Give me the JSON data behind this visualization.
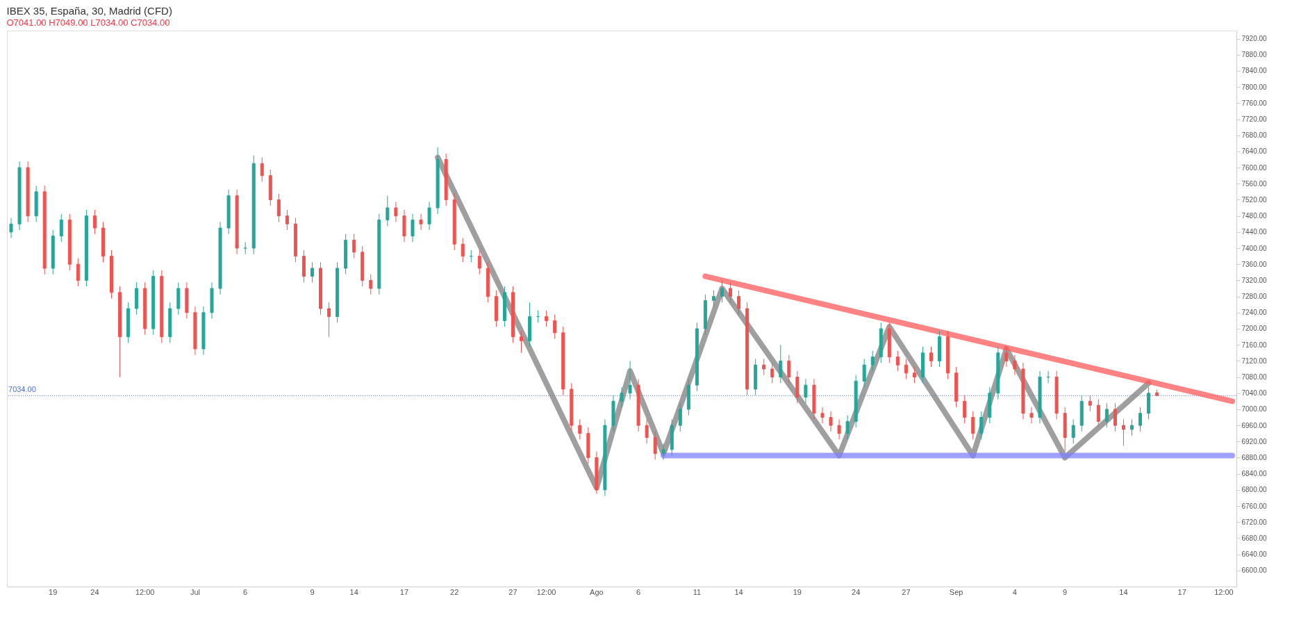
{
  "chart_data": {
    "type": "candlestick",
    "title": "IBEX 35, España, 30, Madrid (CFD)",
    "subtitle": "O7041.00 H7049.00 L7034.00 C7034.00",
    "categories": [
      null,
      null,
      null,
      null,
      null,
      "19",
      null,
      null,
      null,
      null,
      "24",
      null,
      null,
      null,
      null,
      null,
      "12:00",
      null,
      null,
      null,
      null,
      null,
      "Jul",
      null,
      null,
      null,
      null,
      null,
      "6",
      null,
      null,
      null,
      null,
      null,
      null,
      null,
      "9",
      null,
      null,
      null,
      null,
      "14",
      null,
      null,
      null,
      null,
      null,
      "17",
      null,
      null,
      null,
      null,
      null,
      "22",
      null,
      null,
      null,
      null,
      null,
      null,
      "27",
      null,
      null,
      null,
      "12:00",
      null,
      null,
      null,
      null,
      null,
      "Ago",
      null,
      null,
      null,
      null,
      "6",
      null,
      null,
      null,
      null,
      null,
      null,
      "11",
      null,
      null,
      null,
      null,
      "14",
      null,
      null,
      null,
      null,
      null,
      null,
      "19",
      null,
      null,
      null,
      null,
      null,
      null,
      "24",
      null,
      null,
      null,
      null,
      null,
      "27",
      null,
      null,
      null,
      null,
      null,
      "Sep",
      null,
      null,
      null,
      null,
      null,
      null,
      "4",
      null,
      null,
      null,
      null,
      null,
      "9",
      null,
      null,
      null,
      null,
      null,
      null,
      "14",
      null,
      null,
      null,
      null,
      null,
      null,
      "17",
      null,
      null,
      null,
      null,
      "12:00",
      null
    ],
    "ohlc": [
      [
        7440,
        7475,
        7425,
        7460
      ],
      [
        7460,
        7615,
        7445,
        7600
      ],
      [
        7600,
        7615,
        7465,
        7480
      ],
      [
        7480,
        7555,
        7465,
        7540
      ],
      [
        7540,
        7555,
        7335,
        7350
      ],
      [
        7350,
        7445,
        7335,
        7430
      ],
      [
        7430,
        7485,
        7415,
        7470
      ],
      [
        7470,
        7485,
        7345,
        7360
      ],
      [
        7360,
        7375,
        7305,
        7320
      ],
      [
        7320,
        7495,
        7305,
        7480
      ],
      [
        7480,
        7495,
        7435,
        7450
      ],
      [
        7450,
        7465,
        7365,
        7380
      ],
      [
        7380,
        7395,
        7275,
        7290
      ],
      [
        7290,
        7305,
        7080,
        7180
      ],
      [
        7180,
        7265,
        7165,
        7250
      ],
      [
        7250,
        7315,
        7235,
        7300
      ],
      [
        7300,
        7315,
        7185,
        7200
      ],
      [
        7200,
        7345,
        7185,
        7330
      ],
      [
        7330,
        7345,
        7165,
        7180
      ],
      [
        7180,
        7265,
        7165,
        7250
      ],
      [
        7250,
        7315,
        7235,
        7300
      ],
      [
        7300,
        7315,
        7225,
        7240
      ],
      [
        7240,
        7255,
        7135,
        7150
      ],
      [
        7150,
        7255,
        7135,
        7240
      ],
      [
        7240,
        7315,
        7225,
        7300
      ],
      [
        7300,
        7465,
        7285,
        7450
      ],
      [
        7450,
        7545,
        7435,
        7530
      ],
      [
        7530,
        7545,
        7385,
        7400
      ],
      [
        7400,
        7415,
        7385,
        7400
      ],
      [
        7400,
        7630,
        7385,
        7610
      ],
      [
        7610,
        7625,
        7565,
        7580
      ],
      [
        7580,
        7595,
        7505,
        7520
      ],
      [
        7520,
        7535,
        7465,
        7480
      ],
      [
        7480,
        7495,
        7445,
        7460
      ],
      [
        7460,
        7475,
        7365,
        7380
      ],
      [
        7380,
        7395,
        7315,
        7330
      ],
      [
        7330,
        7365,
        7315,
        7350
      ],
      [
        7350,
        7365,
        7235,
        7250
      ],
      [
        7250,
        7265,
        7180,
        7230
      ],
      [
        7230,
        7365,
        7215,
        7350
      ],
      [
        7350,
        7435,
        7335,
        7420
      ],
      [
        7420,
        7435,
        7375,
        7390
      ],
      [
        7390,
        7405,
        7305,
        7320
      ],
      [
        7320,
        7335,
        7285,
        7300
      ],
      [
        7300,
        7485,
        7285,
        7470
      ],
      [
        7470,
        7530,
        7455,
        7500
      ],
      [
        7500,
        7515,
        7465,
        7480
      ],
      [
        7480,
        7495,
        7415,
        7430
      ],
      [
        7430,
        7485,
        7415,
        7470
      ],
      [
        7470,
        7485,
        7445,
        7460
      ],
      [
        7460,
        7515,
        7445,
        7500
      ],
      [
        7500,
        7650,
        7485,
        7620
      ],
      [
        7620,
        7635,
        7505,
        7520
      ],
      [
        7520,
        7535,
        7395,
        7410
      ],
      [
        7410,
        7425,
        7365,
        7380
      ],
      [
        7380,
        7395,
        7365,
        7380
      ],
      [
        7380,
        7395,
        7335,
        7350
      ],
      [
        7350,
        7365,
        7265,
        7280
      ],
      [
        7280,
        7295,
        7205,
        7220
      ],
      [
        7220,
        7305,
        7205,
        7290
      ],
      [
        7290,
        7305,
        7165,
        7180
      ],
      [
        7180,
        7195,
        7140,
        7170
      ],
      [
        7170,
        7265,
        7155,
        7230
      ],
      [
        7230,
        7245,
        7215,
        7230
      ],
      [
        7230,
        7245,
        7205,
        7220
      ],
      [
        7220,
        7235,
        7175,
        7190
      ],
      [
        7190,
        7205,
        7035,
        7050
      ],
      [
        7050,
        7065,
        6945,
        6960
      ],
      [
        6960,
        6975,
        6925,
        6940
      ],
      [
        6940,
        6955,
        6865,
        6880
      ],
      [
        6880,
        6895,
        6790,
        6800
      ],
      [
        6800,
        6975,
        6785,
        6960
      ],
      [
        6960,
        7035,
        6945,
        7020
      ],
      [
        7020,
        7055,
        7005,
        7040
      ],
      [
        7040,
        7120,
        7025,
        7060
      ],
      [
        7060,
        7075,
        6945,
        6960
      ],
      [
        6960,
        6975,
        6915,
        6930
      ],
      [
        6930,
        6945,
        6875,
        6890
      ],
      [
        6890,
        6915,
        6875,
        6900
      ],
      [
        6900,
        6975,
        6885,
        6960
      ],
      [
        6960,
        7015,
        6945,
        7000
      ],
      [
        7000,
        7075,
        6985,
        7060
      ],
      [
        7060,
        7215,
        7045,
        7200
      ],
      [
        7200,
        7285,
        7185,
        7270
      ],
      [
        7270,
        7295,
        7255,
        7280
      ],
      [
        7280,
        7320,
        7265,
        7300
      ],
      [
        7300,
        7315,
        7265,
        7280
      ],
      [
        7280,
        7295,
        7235,
        7250
      ],
      [
        7250,
        7265,
        7035,
        7050
      ],
      [
        7050,
        7125,
        7035,
        7110
      ],
      [
        7110,
        7125,
        7085,
        7100
      ],
      [
        7100,
        7115,
        7065,
        7080
      ],
      [
        7080,
        7160,
        7065,
        7120
      ],
      [
        7120,
        7135,
        7065,
        7080
      ],
      [
        7080,
        7095,
        7015,
        7030
      ],
      [
        7030,
        7075,
        7015,
        7060
      ],
      [
        7060,
        7075,
        6975,
        6990
      ],
      [
        6990,
        7005,
        6965,
        6980
      ],
      [
        6980,
        6995,
        6945,
        6960
      ],
      [
        6960,
        6975,
        6925,
        6940
      ],
      [
        6940,
        6985,
        6925,
        6970
      ],
      [
        6970,
        7085,
        6955,
        7070
      ],
      [
        7070,
        7125,
        7055,
        7110
      ],
      [
        7110,
        7145,
        7095,
        7130
      ],
      [
        7130,
        7215,
        7115,
        7200
      ],
      [
        7200,
        7215,
        7115,
        7130
      ],
      [
        7130,
        7145,
        7095,
        7110
      ],
      [
        7110,
        7125,
        7075,
        7090
      ],
      [
        7090,
        7105,
        7065,
        7080
      ],
      [
        7080,
        7155,
        7065,
        7140
      ],
      [
        7140,
        7155,
        7105,
        7120
      ],
      [
        7120,
        7195,
        7105,
        7180
      ],
      [
        7180,
        7195,
        7075,
        7090
      ],
      [
        7090,
        7105,
        7005,
        7020
      ],
      [
        7020,
        7035,
        6965,
        6980
      ],
      [
        6980,
        6995,
        6925,
        6940
      ],
      [
        6940,
        6995,
        6925,
        6980
      ],
      [
        6980,
        7055,
        6965,
        7040
      ],
      [
        7040,
        7155,
        7025,
        7140
      ],
      [
        7140,
        7155,
        7105,
        7120
      ],
      [
        7120,
        7135,
        7085,
        7100
      ],
      [
        7100,
        7115,
        6975,
        6990
      ],
      [
        6990,
        7005,
        6965,
        6980
      ],
      [
        6980,
        7095,
        6965,
        7080
      ],
      [
        7080,
        7095,
        7065,
        7080
      ],
      [
        7080,
        7095,
        6975,
        6990
      ],
      [
        6990,
        7005,
        6895,
        6930
      ],
      [
        6930,
        6975,
        6915,
        6960
      ],
      [
        6960,
        7035,
        6945,
        7020
      ],
      [
        7020,
        7035,
        6995,
        7010
      ],
      [
        7010,
        7025,
        6955,
        6970
      ],
      [
        6970,
        7015,
        6955,
        7000
      ],
      [
        7000,
        7015,
        6945,
        6960
      ],
      [
        6960,
        6975,
        6910,
        6950
      ],
      [
        6950,
        6975,
        6935,
        6960
      ],
      [
        6960,
        7005,
        6945,
        6990
      ],
      [
        6990,
        7055,
        6975,
        7040
      ],
      [
        7041,
        7049,
        7034,
        7034
      ],
      null,
      null,
      null,
      null,
      null,
      null,
      null,
      null,
      null
    ],
    "series": [
      {
        "type": "line",
        "color": "#7f7f7f",
        "values": [
          null,
          null,
          null,
          null,
          null,
          null,
          null,
          null,
          null,
          null,
          null,
          null,
          null,
          null,
          null,
          null,
          null,
          null,
          null,
          null,
          null,
          null,
          null,
          null,
          null,
          null,
          null,
          null,
          null,
          null,
          null,
          null,
          null,
          null,
          null,
          null,
          null,
          null,
          null,
          null,
          null,
          null,
          null,
          null,
          null,
          null,
          null,
          null,
          null,
          null,
          null,
          7625,
          null,
          null,
          null,
          null,
          null,
          null,
          null,
          null,
          null,
          null,
          null,
          null,
          null,
          null,
          null,
          null,
          null,
          null,
          6805,
          null,
          null,
          null,
          7095,
          null,
          null,
          null,
          6890,
          null,
          null,
          null,
          null,
          null,
          null,
          7300,
          null,
          null,
          null,
          null,
          null,
          null,
          null,
          null,
          null,
          null,
          null,
          null,
          null,
          6885,
          null,
          null,
          null,
          null,
          null,
          7205,
          null,
          null,
          null,
          null,
          null,
          null,
          null,
          null,
          null,
          6885,
          null,
          null,
          null,
          7150,
          null,
          null,
          null,
          null,
          null,
          null,
          6880,
          null,
          null,
          null,
          null,
          null,
          null,
          null,
          null,
          null,
          7065,
          null,
          null,
          null,
          null,
          null,
          null,
          null,
          null,
          null,
          null
        ]
      },
      {
        "type": "line",
        "color": "#ff5a5a",
        "values": [
          null,
          null,
          null,
          null,
          null,
          null,
          null,
          null,
          null,
          null,
          null,
          null,
          null,
          null,
          null,
          null,
          null,
          null,
          null,
          null,
          null,
          null,
          null,
          null,
          null,
          null,
          null,
          null,
          null,
          null,
          null,
          null,
          null,
          null,
          null,
          null,
          null,
          null,
          null,
          null,
          null,
          null,
          null,
          null,
          null,
          null,
          null,
          null,
          null,
          null,
          null,
          null,
          null,
          null,
          null,
          null,
          null,
          null,
          null,
          null,
          null,
          null,
          null,
          null,
          null,
          null,
          null,
          null,
          null,
          null,
          null,
          null,
          null,
          null,
          null,
          null,
          null,
          null,
          null,
          null,
          null,
          null,
          null,
          7330,
          null,
          null,
          null,
          null,
          null,
          null,
          null,
          null,
          null,
          null,
          null,
          null,
          null,
          null,
          null,
          null,
          null,
          null,
          null,
          null,
          null,
          null,
          null,
          null,
          null,
          null,
          null,
          null,
          null,
          null,
          null,
          null,
          null,
          null,
          null,
          null,
          null,
          null,
          null,
          null,
          null,
          null,
          null,
          null,
          null,
          null,
          null,
          null,
          null,
          null,
          null,
          null,
          null,
          null,
          null,
          null,
          null,
          null,
          null,
          null,
          null,
          null,
          7020
        ]
      },
      {
        "type": "line",
        "color": "#8080ff",
        "values": [
          null,
          null,
          null,
          null,
          null,
          null,
          null,
          null,
          null,
          null,
          null,
          null,
          null,
          null,
          null,
          null,
          null,
          null,
          null,
          null,
          null,
          null,
          null,
          null,
          null,
          null,
          null,
          null,
          null,
          null,
          null,
          null,
          null,
          null,
          null,
          null,
          null,
          null,
          null,
          null,
          null,
          null,
          null,
          null,
          null,
          null,
          null,
          null,
          null,
          null,
          null,
          null,
          null,
          null,
          null,
          null,
          null,
          null,
          null,
          null,
          null,
          null,
          null,
          null,
          null,
          null,
          null,
          null,
          null,
          null,
          null,
          null,
          null,
          null,
          null,
          null,
          null,
          null,
          6885,
          null,
          null,
          null,
          null,
          null,
          null,
          null,
          null,
          null,
          null,
          null,
          null,
          null,
          null,
          null,
          null,
          null,
          null,
          null,
          null,
          null,
          null,
          null,
          null,
          null,
          null,
          null,
          null,
          null,
          null,
          null,
          null,
          null,
          null,
          null,
          null,
          null,
          null,
          null,
          null,
          null,
          null,
          null,
          null,
          null,
          null,
          null,
          null,
          null,
          null,
          null,
          null,
          null,
          null,
          null,
          null,
          null,
          null,
          null,
          null,
          null,
          null,
          null,
          null,
          null,
          null,
          null,
          6885
        ]
      }
    ],
    "ref_lines": [
      {
        "axis": "y",
        "value": 7034,
        "label": "7034.00",
        "color": "#4a6fe3",
        "line_style": "dotted"
      }
    ],
    "ylim": [
      6560,
      7940
    ],
    "yticks": [
      {
        "value": 6600,
        "label": "6600.00"
      },
      {
        "value": 6640,
        "label": "6640.00"
      },
      {
        "value": 6680,
        "label": "6680.00"
      },
      {
        "value": 6720,
        "label": "6720.00"
      },
      {
        "value": 6760,
        "label": "6760.00"
      },
      {
        "value": 6800,
        "label": "6800.00"
      },
      {
        "value": 6840,
        "label": "6840.00"
      },
      {
        "value": 6880,
        "label": "6880.00"
      },
      {
        "value": 6920,
        "label": "6920.00"
      },
      {
        "value": 6960,
        "label": "6960.00"
      },
      {
        "value": 7000,
        "label": "7000.00"
      },
      {
        "value": 7040,
        "label": "7040.00"
      },
      {
        "value": 7080,
        "label": "7080.00"
      },
      {
        "value": 7120,
        "label": "7120.00"
      },
      {
        "value": 7160,
        "label": "7160.00"
      },
      {
        "value": 7200,
        "label": "7200.00"
      },
      {
        "value": 7240,
        "label": "7240.00"
      },
      {
        "value": 7280,
        "label": "7280.00"
      },
      {
        "value": 7320,
        "label": "7320.00"
      },
      {
        "value": 7360,
        "label": "7360.00"
      },
      {
        "value": 7400,
        "label": "7400.00"
      },
      {
        "value": 7440,
        "label": "7440.00"
      },
      {
        "value": 7480,
        "label": "7480.00"
      },
      {
        "value": 7520,
        "label": "7520.00"
      },
      {
        "value": 7560,
        "label": "7560.00"
      },
      {
        "value": 7600,
        "label": "7600.00"
      },
      {
        "value": 7640,
        "label": "7640.00"
      },
      {
        "value": 7680,
        "label": "7680.00"
      },
      {
        "value": 7720,
        "label": "7720.00"
      },
      {
        "value": 7760,
        "label": "7760.00"
      },
      {
        "value": 7800,
        "label": "7800.00"
      },
      {
        "value": 7840,
        "label": "7840.00"
      },
      {
        "value": 7880,
        "label": "7880.00"
      },
      {
        "value": 7920,
        "label": "7920.00"
      }
    ]
  }
}
